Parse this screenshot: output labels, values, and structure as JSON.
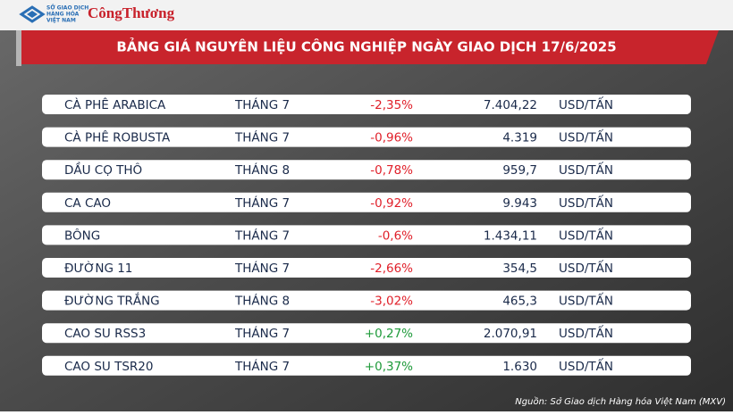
{
  "header": {
    "logo_lines": [
      "SỞ GIAO DỊCH",
      "HÀNG HÓA",
      "VIỆT NAM"
    ],
    "brand": "CôngThương"
  },
  "title": "BẢNG GIÁ NGUYÊN LIỆU CÔNG NGHIỆP NGÀY GIAO DỊCH 17/6/2025",
  "table": {
    "rows": [
      [
        "CÀ PHÊ ARABICA",
        "THÁNG 7",
        "-2,35%",
        "7.404,22",
        "USD/TẤN"
      ],
      [
        "CÀ PHÊ ROBUSTA",
        "THÁNG 7",
        "-0,96%",
        "4.319",
        "USD/TẤN"
      ],
      [
        "DẦU CỌ THÔ",
        "THÁNG 8",
        "-0,78%",
        "959,7",
        "USD/TẤN"
      ],
      [
        "CA CAO",
        "THÁNG 7",
        "-0,92%",
        "9.943",
        "USD/TẤN"
      ],
      [
        "BÔNG",
        "THÁNG 7",
        "-0,6%",
        "1.434,11",
        "USD/TẤN"
      ],
      [
        "ĐƯỜNG 11",
        "THÁNG 7",
        "-2,66%",
        "354,5",
        "USD/TẤN"
      ],
      [
        "ĐƯỜNG TRẮNG",
        "THÁNG 8",
        "-3,02%",
        "465,3",
        "USD/TẤN"
      ],
      [
        "CAO SU RSS3",
        "THÁNG 7",
        "+0,27%",
        "2.070,91",
        "USD/TẤN"
      ],
      [
        "CAO SU TSR20",
        "THÁNG 7",
        "+0,37%",
        "1.630",
        "USD/TẤN"
      ]
    ]
  },
  "source": "Nguồn: Sở Giao dịch Hàng hóa Việt Nam (MXV)"
}
